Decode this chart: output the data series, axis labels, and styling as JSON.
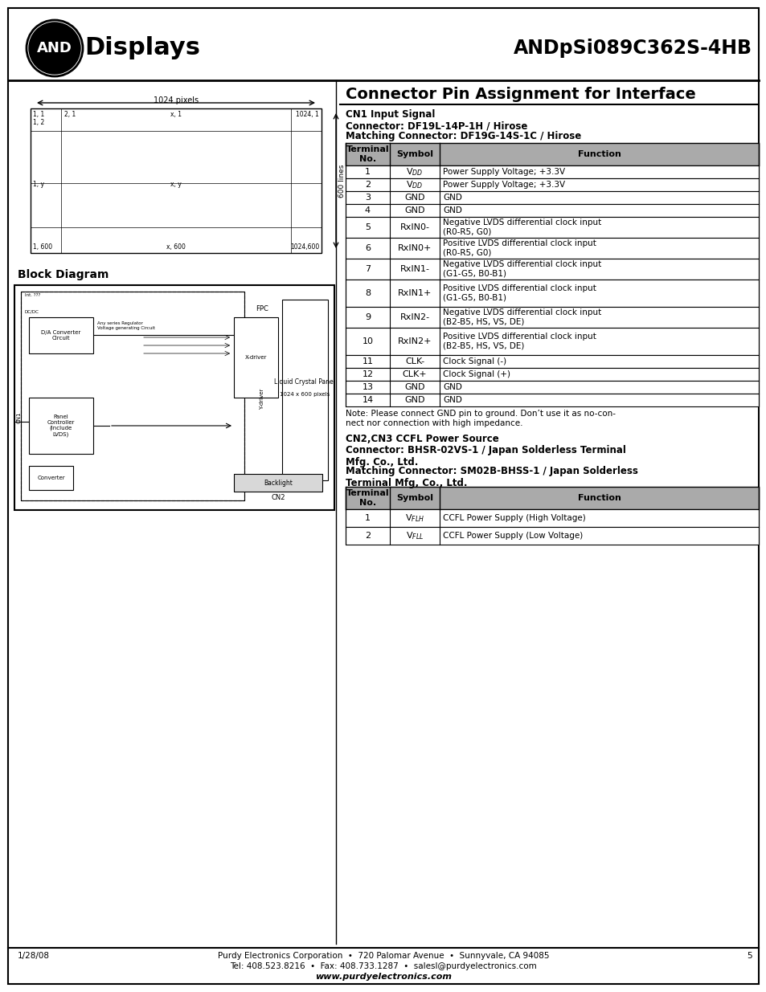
{
  "page_title": "ANDpSi089C362S-4HB",
  "section_title": "Connector Pin Assignment for Interface",
  "cn1_heading1": "CN1 Input Signal",
  "cn1_heading2": "Connector: DF19L-14P-1H / Hirose",
  "cn1_heading3": "Matching Connector: DF19G-14S-1C / Hirose",
  "cn1_table_headers": [
    "Terminal\nNo.",
    "Symbol",
    "Function"
  ],
  "cn1_rows": [
    [
      "1",
      "V$_{DD}$",
      "Power Supply Voltage; +3.3V"
    ],
    [
      "2",
      "V$_{DD}$",
      "Power Supply Voltage; +3.3V"
    ],
    [
      "3",
      "GND",
      "GND"
    ],
    [
      "4",
      "GND",
      "GND"
    ],
    [
      "5",
      "RxIN0-",
      "Negative LVDS differential clock input\n(R0-R5, G0)"
    ],
    [
      "6",
      "RxIN0+",
      "Positive LVDS differential clock input\n(R0-R5, G0)"
    ],
    [
      "7",
      "RxIN1-",
      "Negative LVDS differential clock input\n(G1-G5, B0-B1)"
    ],
    [
      "8",
      "RxIN1+",
      "Positive LVDS differential clock input\n(G1-G5, B0-B1)"
    ],
    [
      "9",
      "RxIN2-",
      "Negative LVDS differential clock input\n(B2-B5, HS, VS, DE)"
    ],
    [
      "10",
      "RxIN2+",
      "Positive LVDS differential clock input\n(B2-B5, HS, VS, DE)"
    ],
    [
      "11",
      "CLK-",
      "Clock Signal (-)"
    ],
    [
      "12",
      "CLK+",
      "Clock Signal (+)"
    ],
    [
      "13",
      "GND",
      "GND"
    ],
    [
      "14",
      "GND",
      "GND"
    ]
  ],
  "cn1_note": "Note: Please connect GND pin to ground. Don’t use it as no-con-\nnect nor connection with high impedance.",
  "block_diagram_label": "Block Diagram",
  "cn2_heading0": "CN2,CN3 CCFL Power Source",
  "cn2_heading1": "Connector: BHSR-02VS-1 / Japan Solderless Terminal\nMfg. Co., Ltd.",
  "cn2_heading2": "Matching Connector: SM02B-BHSS-1 / Japan Solderless\nTerminal Mfg, Co., Ltd.",
  "cn2_table_headers": [
    "Terminal\nNo.",
    "Symbol",
    "Function"
  ],
  "cn2_rows": [
    [
      "1",
      "V$_{FLH}$",
      "CCFL Power Supply (High Voltage)"
    ],
    [
      "2",
      "V$_{FLL}$",
      "CCFL Power Supply (Low Voltage)"
    ]
  ],
  "footer_date": "1/28/08",
  "footer_company": "Purdy Electronics Corporation  •  720 Palomar Avenue  •  Sunnyvale, CA 94085",
  "footer_contact": "Tel: 408.523.8216  •  Fax: 408.733.1287  •  salesl@purdyelectronics.com",
  "footer_web": "www.purdyelectronics.com",
  "footer_page": "5",
  "table_header_bg": "#aaaaaa",
  "bg_color": "#ffffff"
}
